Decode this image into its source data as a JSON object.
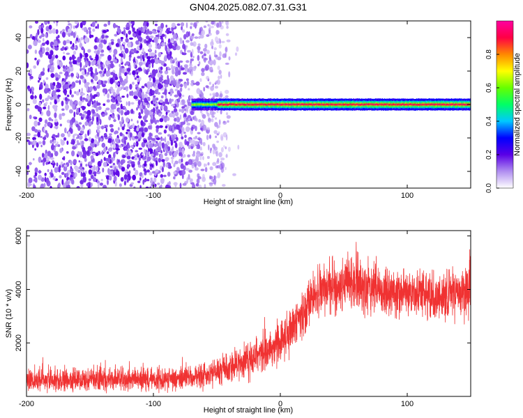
{
  "figure": {
    "title": "GN04.2025.082.07.31.G31"
  },
  "colors": {
    "snr_series": "#f03232",
    "axis": "#000000",
    "colormap": [
      "#ffffff",
      "#b08ef0",
      "#5a00e6",
      "#0000ff",
      "#00c8ff",
      "#00ff66",
      "#66ff00",
      "#ffff00",
      "#ff8800",
      "#ff0044",
      "#ff00a0"
    ]
  },
  "chart_data": [
    {
      "type": "heatmap",
      "title": "",
      "xlabel": "Height of straight line (km)",
      "ylabel": "Frequency (Hz)",
      "xlim": [
        -200,
        150
      ],
      "ylim": [
        -50,
        50
      ],
      "x_ticks": [
        -200,
        -100,
        0,
        100
      ],
      "y_ticks": [
        -40,
        -20,
        0,
        20,
        40
      ],
      "colorbar": {
        "label": "Normalized spectral amplitude",
        "range": [
          0.0,
          1.0
        ],
        "ticks": [
          0.0,
          0.2,
          0.4,
          0.6,
          0.8
        ]
      },
      "features": {
        "scatter_region_x": [
          -200,
          -40
        ],
        "scatter_amplitude": [
          0.05,
          0.2
        ],
        "tone_start_x": -70,
        "tone_frequency_hz": 0,
        "tone_amplitude": [
          0.8,
          1.0
        ]
      }
    },
    {
      "type": "line",
      "title": "",
      "xlabel": "Height of straight line (km)",
      "ylabel": "SNR (10 * v/v)",
      "xlim": [
        -200,
        150
      ],
      "ylim": [
        0,
        6200
      ],
      "x_ticks": [
        -200,
        -100,
        0,
        100
      ],
      "y_ticks": [
        2000,
        4000,
        6000
      ],
      "series": [
        {
          "envelope_x": [
            -200,
            -150,
            -100,
            -75,
            -50,
            -25,
            0,
            15,
            25,
            40,
            60,
            80,
            100,
            125,
            150
          ],
          "envelope_mean": [
            600,
            620,
            640,
            680,
            900,
            1400,
            2000,
            2900,
            3700,
            4100,
            4200,
            3950,
            3850,
            3700,
            3900
          ],
          "envelope_spread": [
            350,
            350,
            350,
            360,
            450,
            550,
            650,
            700,
            750,
            800,
            900,
            800,
            750,
            700,
            800
          ]
        }
      ]
    }
  ]
}
